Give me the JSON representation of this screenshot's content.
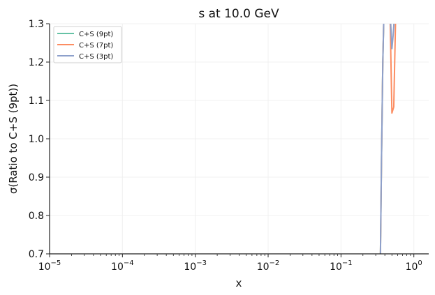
{
  "chart_data": {
    "type": "line",
    "title": "s at 10.0 GeV",
    "xlabel": "x",
    "ylabel": "σ(Ratio to C+S (9pt))",
    "xscale": "log",
    "xlim": [
      1e-05,
      1.6
    ],
    "ylim": [
      0.7,
      1.3
    ],
    "grid": "on (faint)",
    "legend_position": "top-left",
    "x_ticks": [
      {
        "value": 1e-05,
        "base": "10",
        "exp": "−5"
      },
      {
        "value": 0.0001,
        "base": "10",
        "exp": "−4"
      },
      {
        "value": 0.001,
        "base": "10",
        "exp": "−3"
      },
      {
        "value": 0.01,
        "base": "10",
        "exp": "−2"
      },
      {
        "value": 0.1,
        "base": "10",
        "exp": "−1"
      },
      {
        "value": 1,
        "base": "10",
        "exp": "0"
      }
    ],
    "y_ticks": [
      {
        "value": 0.7,
        "label": "0.7"
      },
      {
        "value": 0.8,
        "label": "0.8"
      },
      {
        "value": 0.9,
        "label": "0.9"
      },
      {
        "value": 1.0,
        "label": "1.0"
      },
      {
        "value": 1.1,
        "label": "1.1"
      },
      {
        "value": 1.2,
        "label": "1.2"
      },
      {
        "value": 1.3,
        "label": "1.3"
      }
    ],
    "series": [
      {
        "name": "C+S (9pt)",
        "color": "#66c2a5",
        "x": [
          0.346,
          0.36,
          0.375,
          0.39
        ],
        "y": [
          0.66,
          0.95,
          1.2,
          1.34
        ]
      },
      {
        "name": "C+S (7pt)",
        "color": "#fc8d62",
        "x": [
          0.346,
          0.36,
          0.375,
          0.385,
          0.4,
          0.41,
          0.47,
          0.5,
          0.53,
          0.56,
          0.58
        ],
        "y": [
          0.66,
          0.95,
          1.2,
          1.3,
          1.34,
          1.34,
          1.34,
          1.067,
          1.083,
          1.3,
          1.34
        ]
      },
      {
        "name": "C+S (3pt)",
        "color": "#8da0cb",
        "x": [
          0.346,
          0.36,
          0.375,
          0.39,
          0.4,
          0.41,
          0.47,
          0.5,
          0.52,
          0.55,
          0.57
        ],
        "y": [
          0.66,
          0.95,
          1.2,
          1.34,
          1.34,
          1.34,
          1.34,
          1.235,
          1.27,
          1.34,
          1.34
        ]
      }
    ]
  }
}
